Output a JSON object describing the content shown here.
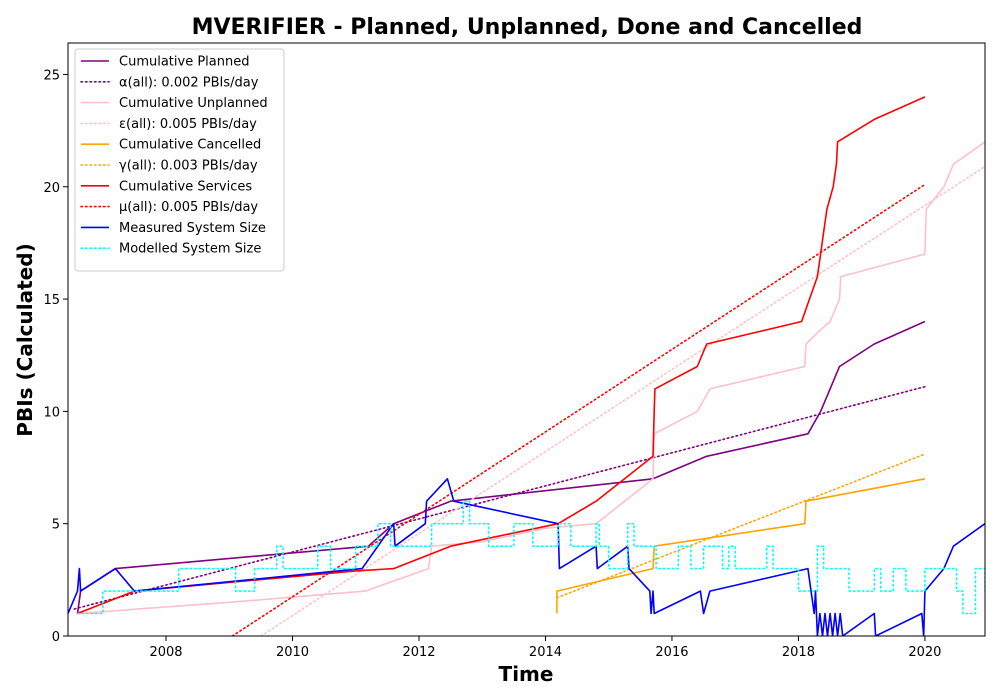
{
  "chart_data": {
    "type": "line",
    "title": "MVERIFIER - Planned, Unplanned, Done  and Cancelled",
    "xlabel": "Time",
    "ylabel": "PBIs (Calculated)",
    "xlim": [
      2006.45,
      2020.95
    ],
    "ylim": [
      0,
      26.4
    ],
    "x_ticks": [
      2008,
      2010,
      2012,
      2014,
      2016,
      2018,
      2020
    ],
    "y_ticks": [
      0,
      5,
      10,
      15,
      20,
      25
    ],
    "grid": false,
    "legend_position": "top-left",
    "series": [
      {
        "name": "Cumulative Planned",
        "color": "#800080",
        "style": "solid",
        "points": [
          [
            2006.6,
            1
          ],
          [
            2006.65,
            2
          ],
          [
            2007.2,
            3
          ],
          [
            2011.2,
            4
          ],
          [
            2011.6,
            5
          ],
          [
            2012.5,
            6
          ],
          [
            2015.7,
            7
          ],
          [
            2016.55,
            8
          ],
          [
            2018.15,
            9
          ],
          [
            2018.35,
            10
          ],
          [
            2018.5,
            11
          ],
          [
            2018.65,
            12
          ],
          [
            2019.2,
            13
          ],
          [
            2020.0,
            14
          ]
        ]
      },
      {
        "name": "α(all): 0.002 PBIs/day",
        "color": "#800080",
        "style": "dotted",
        "points": [
          [
            2006.55,
            1.2
          ],
          [
            2020.0,
            11.1
          ]
        ]
      },
      {
        "name": "Cumulative Unplanned",
        "color": "#ffc0cb",
        "style": "solid",
        "points": [
          [
            2006.6,
            1
          ],
          [
            2009.0,
            1.5
          ],
          [
            2011.15,
            2
          ],
          [
            2012.15,
            3
          ],
          [
            2012.2,
            4
          ],
          [
            2013.0,
            4.2
          ],
          [
            2014.0,
            4.8
          ],
          [
            2014.8,
            5
          ],
          [
            2015.7,
            7
          ],
          [
            2015.72,
            9
          ],
          [
            2016.4,
            10
          ],
          [
            2016.6,
            11
          ],
          [
            2018.1,
            12
          ],
          [
            2018.12,
            13
          ],
          [
            2018.3,
            13.5
          ],
          [
            2018.5,
            14
          ],
          [
            2018.65,
            15
          ],
          [
            2018.67,
            16
          ],
          [
            2020.0,
            17
          ],
          [
            2020.02,
            19
          ],
          [
            2020.3,
            20
          ],
          [
            2020.45,
            21
          ],
          [
            2020.95,
            22
          ]
        ]
      },
      {
        "name": "ε(all): 0.005 PBIs/day",
        "color": "#ffc0cb",
        "style": "dotted",
        "points": [
          [
            2009.5,
            0
          ],
          [
            2020.95,
            20.9
          ]
        ]
      },
      {
        "name": "Cumulative Cancelled",
        "color": "#ffa500",
        "style": "solid",
        "points": [
          [
            2014.18,
            1
          ],
          [
            2014.18,
            2
          ],
          [
            2015.7,
            3
          ],
          [
            2015.72,
            4
          ],
          [
            2018.1,
            5
          ],
          [
            2018.12,
            6
          ],
          [
            2020.0,
            7
          ]
        ]
      },
      {
        "name": "γ(all): 0.003 PBIs/day",
        "color": "#ffa500",
        "style": "dotted",
        "points": [
          [
            2014.18,
            1.7
          ],
          [
            2020.0,
            8.1
          ]
        ]
      },
      {
        "name": "Cumulative Services",
        "color": "#ff0000",
        "style": "solid",
        "points": [
          [
            2006.6,
            1
          ],
          [
            2007.5,
            2
          ],
          [
            2011.0,
            2.9
          ],
          [
            2011.6,
            3
          ],
          [
            2012.5,
            4
          ],
          [
            2014.2,
            5
          ],
          [
            2014.8,
            6
          ],
          [
            2015.7,
            8
          ],
          [
            2015.72,
            10
          ],
          [
            2015.73,
            11
          ],
          [
            2016.4,
            12
          ],
          [
            2016.55,
            13
          ],
          [
            2018.05,
            14
          ],
          [
            2018.3,
            16
          ],
          [
            2018.35,
            17
          ],
          [
            2018.4,
            18
          ],
          [
            2018.45,
            19
          ],
          [
            2018.55,
            20
          ],
          [
            2018.6,
            21
          ],
          [
            2018.62,
            22
          ],
          [
            2019.2,
            23
          ],
          [
            2020.0,
            24
          ]
        ]
      },
      {
        "name": "μ(all): 0.005 PBIs/day",
        "color": "#ff0000",
        "style": "dotted",
        "points": [
          [
            2009.05,
            0
          ],
          [
            2020.0,
            20.1
          ]
        ]
      },
      {
        "name": "Measured System Size",
        "color": "#0000ff",
        "style": "solid",
        "points": [
          [
            2006.45,
            1
          ],
          [
            2006.6,
            2
          ],
          [
            2006.63,
            3
          ],
          [
            2006.65,
            2
          ],
          [
            2007.2,
            3
          ],
          [
            2007.5,
            2
          ],
          [
            2011.1,
            3
          ],
          [
            2011.6,
            5
          ],
          [
            2011.62,
            4
          ],
          [
            2012.1,
            5
          ],
          [
            2012.12,
            6
          ],
          [
            2012.45,
            7
          ],
          [
            2012.55,
            6
          ],
          [
            2014.2,
            5
          ],
          [
            2014.22,
            3
          ],
          [
            2014.8,
            4
          ],
          [
            2014.82,
            3
          ],
          [
            2015.3,
            4
          ],
          [
            2015.32,
            3
          ],
          [
            2015.65,
            2
          ],
          [
            2015.67,
            1
          ],
          [
            2015.7,
            2
          ],
          [
            2015.72,
            1
          ],
          [
            2016.45,
            2
          ],
          [
            2016.5,
            1
          ],
          [
            2016.6,
            2
          ],
          [
            2018.15,
            3
          ],
          [
            2018.25,
            1
          ],
          [
            2018.27,
            2
          ],
          [
            2018.3,
            0
          ],
          [
            2018.34,
            1
          ],
          [
            2018.38,
            0
          ],
          [
            2018.42,
            1
          ],
          [
            2018.46,
            0
          ],
          [
            2018.5,
            1
          ],
          [
            2018.54,
            0
          ],
          [
            2018.58,
            1
          ],
          [
            2018.62,
            0
          ],
          [
            2018.66,
            1
          ],
          [
            2018.7,
            0
          ],
          [
            2019.2,
            1
          ],
          [
            2019.22,
            0
          ],
          [
            2019.95,
            1
          ],
          [
            2019.98,
            0
          ],
          [
            2020.0,
            2
          ],
          [
            2020.3,
            3
          ],
          [
            2020.45,
            4
          ],
          [
            2020.95,
            5
          ]
        ]
      },
      {
        "name": "Modelled System Size",
        "color": "#00ffff",
        "style": "dotted",
        "step": true,
        "points": [
          [
            2006.6,
            1
          ],
          [
            2007.0,
            2
          ],
          [
            2007.6,
            2
          ],
          [
            2008.2,
            3
          ],
          [
            2009.1,
            2
          ],
          [
            2009.4,
            3
          ],
          [
            2009.75,
            4
          ],
          [
            2009.85,
            3
          ],
          [
            2010.2,
            3
          ],
          [
            2010.4,
            4
          ],
          [
            2010.6,
            3
          ],
          [
            2011.0,
            4
          ],
          [
            2011.35,
            5
          ],
          [
            2011.55,
            4
          ],
          [
            2012.2,
            5
          ],
          [
            2012.7,
            6
          ],
          [
            2012.8,
            5
          ],
          [
            2013.1,
            4
          ],
          [
            2013.5,
            5
          ],
          [
            2013.8,
            4
          ],
          [
            2014.2,
            5
          ],
          [
            2014.4,
            4
          ],
          [
            2014.8,
            5
          ],
          [
            2014.85,
            4
          ],
          [
            2015.0,
            3
          ],
          [
            2015.3,
            5
          ],
          [
            2015.4,
            4
          ],
          [
            2015.75,
            3
          ],
          [
            2016.1,
            4
          ],
          [
            2016.3,
            3
          ],
          [
            2016.5,
            4
          ],
          [
            2016.8,
            3
          ],
          [
            2016.9,
            4
          ],
          [
            2017.0,
            3
          ],
          [
            2017.5,
            4
          ],
          [
            2017.6,
            3
          ],
          [
            2018.0,
            2
          ],
          [
            2018.3,
            4
          ],
          [
            2018.4,
            3
          ],
          [
            2018.8,
            2
          ],
          [
            2019.2,
            3
          ],
          [
            2019.3,
            2
          ],
          [
            2019.5,
            3
          ],
          [
            2019.7,
            2
          ],
          [
            2020.0,
            3
          ],
          [
            2020.5,
            2
          ],
          [
            2020.6,
            1
          ],
          [
            2020.8,
            3
          ],
          [
            2020.95,
            2
          ]
        ]
      }
    ]
  }
}
